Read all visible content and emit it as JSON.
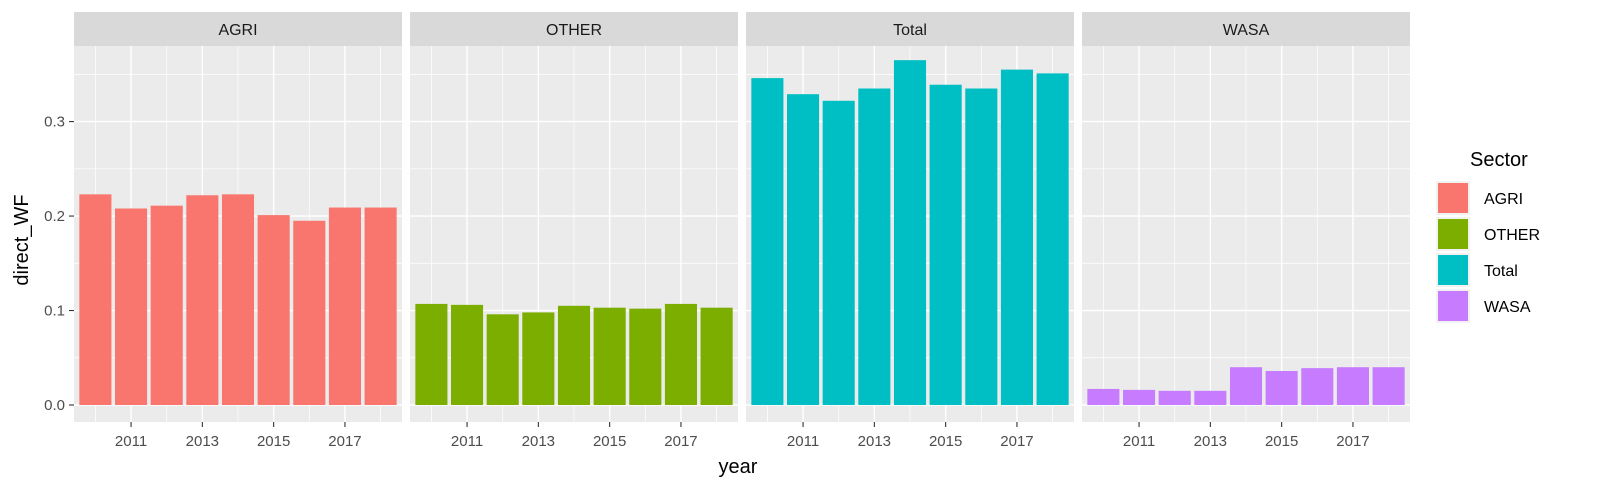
{
  "chart_data": {
    "type": "bar",
    "facet_by": "Sector",
    "xlabel": "year",
    "ylabel": "direct_WF",
    "x": [
      2010,
      2011,
      2012,
      2013,
      2014,
      2015,
      2016,
      2017,
      2018
    ],
    "x_tick_labels": [
      "2011",
      "2013",
      "2015",
      "2017"
    ],
    "x_ticks": [
      2011,
      2013,
      2015,
      2017
    ],
    "y_ticks": [
      0.0,
      0.1,
      0.2,
      0.3
    ],
    "y_tick_labels": [
      "0.0",
      "0.1",
      "0.2",
      "0.3"
    ],
    "ylim": [
      -0.018,
      0.38
    ],
    "xlim": [
      2009.4,
      2018.6
    ],
    "grid": true,
    "legend": {
      "title": "Sector",
      "placement": "right"
    },
    "series": [
      {
        "name": "AGRI",
        "color": "#F8766D",
        "values": [
          0.223,
          0.208,
          0.211,
          0.222,
          0.223,
          0.201,
          0.195,
          0.209,
          0.209
        ]
      },
      {
        "name": "OTHER",
        "color": "#7CAE00",
        "values": [
          0.107,
          0.106,
          0.096,
          0.098,
          0.105,
          0.103,
          0.102,
          0.107,
          0.103
        ]
      },
      {
        "name": "Total",
        "color": "#00BFC4",
        "values": [
          0.346,
          0.329,
          0.322,
          0.335,
          0.365,
          0.339,
          0.335,
          0.355,
          0.351
        ]
      },
      {
        "name": "WASA",
        "color": "#C77CFF",
        "values": [
          0.017,
          0.016,
          0.015,
          0.015,
          0.04,
          0.036,
          0.039,
          0.04,
          0.04
        ]
      }
    ]
  }
}
